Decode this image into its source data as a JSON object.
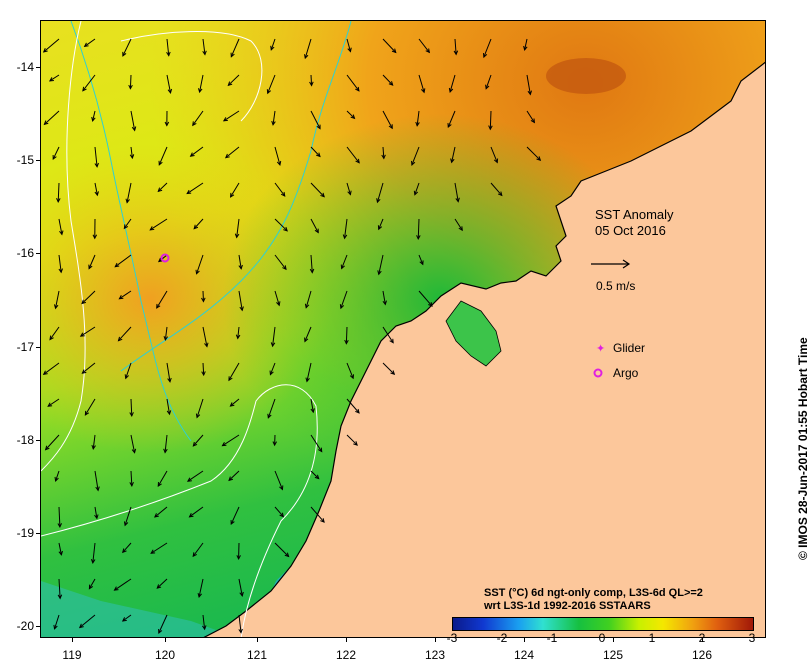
{
  "map": {
    "title_line1": "SST Anomaly",
    "title_line2": "05 Oct 2016",
    "scale_label": "0.5 m/s",
    "lat_ticks": [
      "-14",
      "-15",
      "-16",
      "-17",
      "-18",
      "-19",
      "-20"
    ],
    "lon_ticks": [
      "119",
      "120",
      "121",
      "122",
      "123",
      "124",
      "125",
      "126"
    ],
    "legend": {
      "glider": "Glider",
      "argo": "Argo"
    },
    "caption_line1": "SST (°C) 6d ngt-only comp, L3S-6d QL>=2",
    "caption_line2": "wrt L3S-1d 1992-2016 SSTAARS",
    "colorbar_ticks": [
      "-3",
      "-2",
      "-1",
      "0",
      "1",
      "2",
      "3"
    ],
    "credit": "© IMOS 28-Jun-2017 01:55 Hobart Time",
    "colors": {
      "land": "#fcc79b",
      "glider_marker": "#e020e0",
      "argo_marker": "#e020e0",
      "contour_cyan": "#30d0d0",
      "contour_white": "#ffffff"
    }
  }
}
